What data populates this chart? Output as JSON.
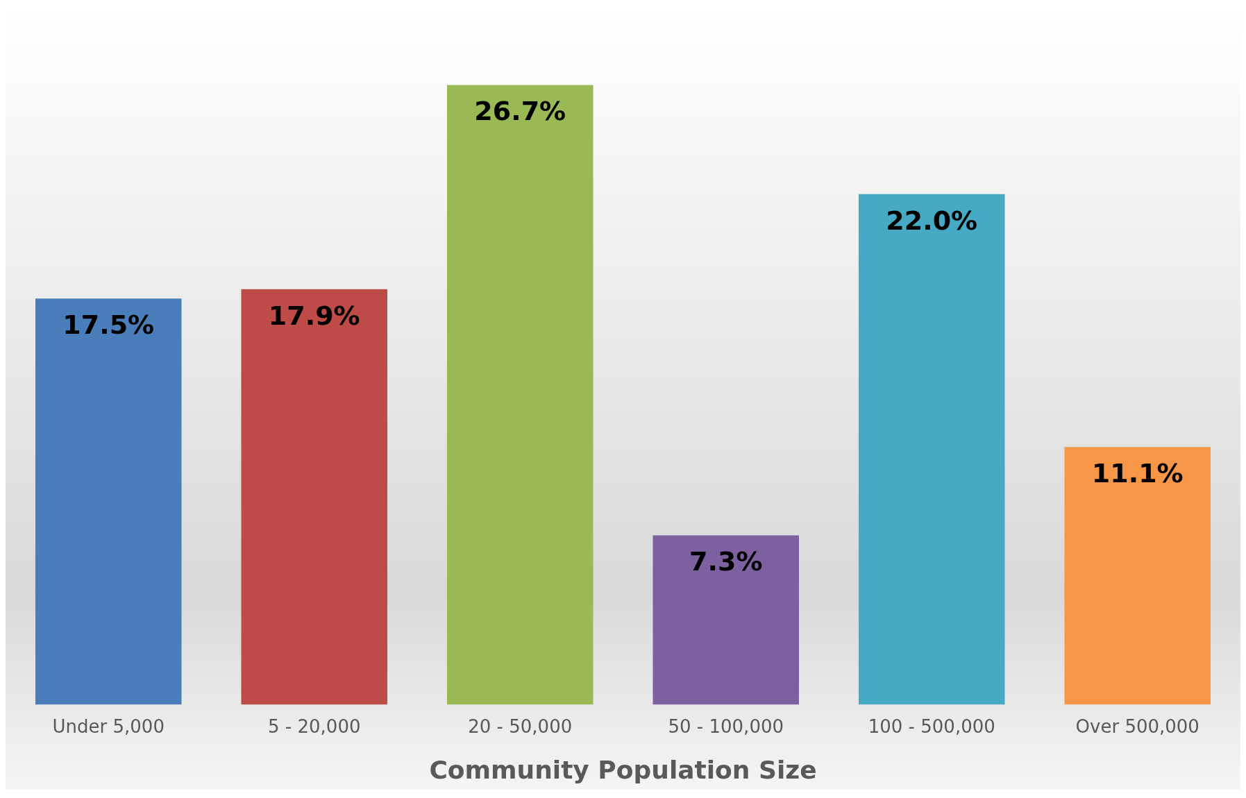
{
  "chart_data": {
    "type": "bar",
    "xlabel": "Community Population Size",
    "categories": [
      "Under 5,000",
      "5 - 20,000",
      "20 - 50,000",
      "50 - 100,000",
      "100 - 500,000",
      "Over 500,000"
    ],
    "values": [
      17.5,
      17.9,
      26.7,
      7.3,
      22.0,
      11.1
    ],
    "value_labels": [
      "17.5%",
      "17.9%",
      "26.7%",
      "7.3%",
      "22.0%",
      "11.1%"
    ],
    "colors": [
      "#4a7ebb",
      "#be4b48",
      "#98b954",
      "#7d60a0",
      "#46aac5",
      "#f79646"
    ],
    "grid": false,
    "legend": false
  }
}
